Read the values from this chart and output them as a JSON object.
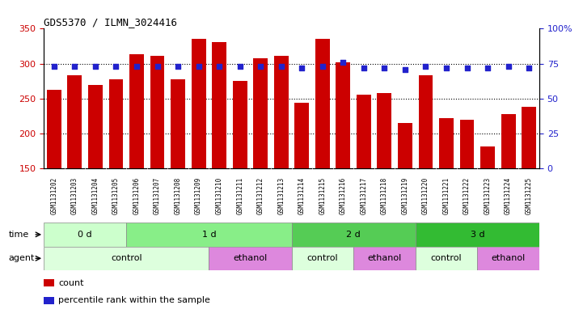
{
  "title": "GDS5370 / ILMN_3024416",
  "samples": [
    "GSM1131202",
    "GSM1131203",
    "GSM1131204",
    "GSM1131205",
    "GSM1131206",
    "GSM1131207",
    "GSM1131208",
    "GSM1131209",
    "GSM1131210",
    "GSM1131211",
    "GSM1131212",
    "GSM1131213",
    "GSM1131214",
    "GSM1131215",
    "GSM1131216",
    "GSM1131217",
    "GSM1131218",
    "GSM1131219",
    "GSM1131220",
    "GSM1131221",
    "GSM1131222",
    "GSM1131223",
    "GSM1131224",
    "GSM1131225"
  ],
  "counts": [
    262,
    283,
    270,
    277,
    313,
    311,
    277,
    335,
    331,
    275,
    308,
    311,
    244,
    335,
    302,
    256,
    258,
    215,
    283,
    222,
    220,
    182,
    228,
    238
  ],
  "percentile": [
    73,
    73,
    73,
    73,
    73,
    73,
    73,
    73,
    73,
    73,
    73,
    73,
    72,
    73,
    76,
    72,
    72,
    71,
    73,
    72,
    72,
    72,
    73,
    72
  ],
  "ylim_left": [
    150,
    350
  ],
  "ylim_right": [
    0,
    100
  ],
  "yticks_left": [
    150,
    200,
    250,
    300,
    350
  ],
  "yticks_right": [
    0,
    25,
    50,
    75,
    100
  ],
  "bar_color": "#CC0000",
  "dot_color": "#2222CC",
  "bg_label_color": "#cccccc",
  "time_groups": [
    {
      "label": "0 d",
      "start": -0.5,
      "end": 3.5,
      "color": "#ccffcc"
    },
    {
      "label": "1 d",
      "start": 3.5,
      "end": 11.5,
      "color": "#88ee88"
    },
    {
      "label": "2 d",
      "start": 11.5,
      "end": 17.5,
      "color": "#55cc55"
    },
    {
      "label": "3 d",
      "start": 17.5,
      "end": 23.5,
      "color": "#33bb33"
    }
  ],
  "agent_groups": [
    {
      "label": "control",
      "start": -0.5,
      "end": 7.5,
      "color": "#ddffdd"
    },
    {
      "label": "ethanol",
      "start": 7.5,
      "end": 11.5,
      "color": "#dd88dd"
    },
    {
      "label": "control",
      "start": 11.5,
      "end": 14.5,
      "color": "#ddffdd"
    },
    {
      "label": "ethanol",
      "start": 14.5,
      "end": 17.5,
      "color": "#dd88dd"
    },
    {
      "label": "control",
      "start": 17.5,
      "end": 20.5,
      "color": "#ddffdd"
    },
    {
      "label": "ethanol",
      "start": 20.5,
      "end": 23.5,
      "color": "#dd88dd"
    }
  ],
  "legend_items": [
    {
      "label": "count",
      "color": "#CC0000"
    },
    {
      "label": "percentile rank within the sample",
      "color": "#2222CC"
    }
  ],
  "xmin": -0.5,
  "xmax": 23.5
}
